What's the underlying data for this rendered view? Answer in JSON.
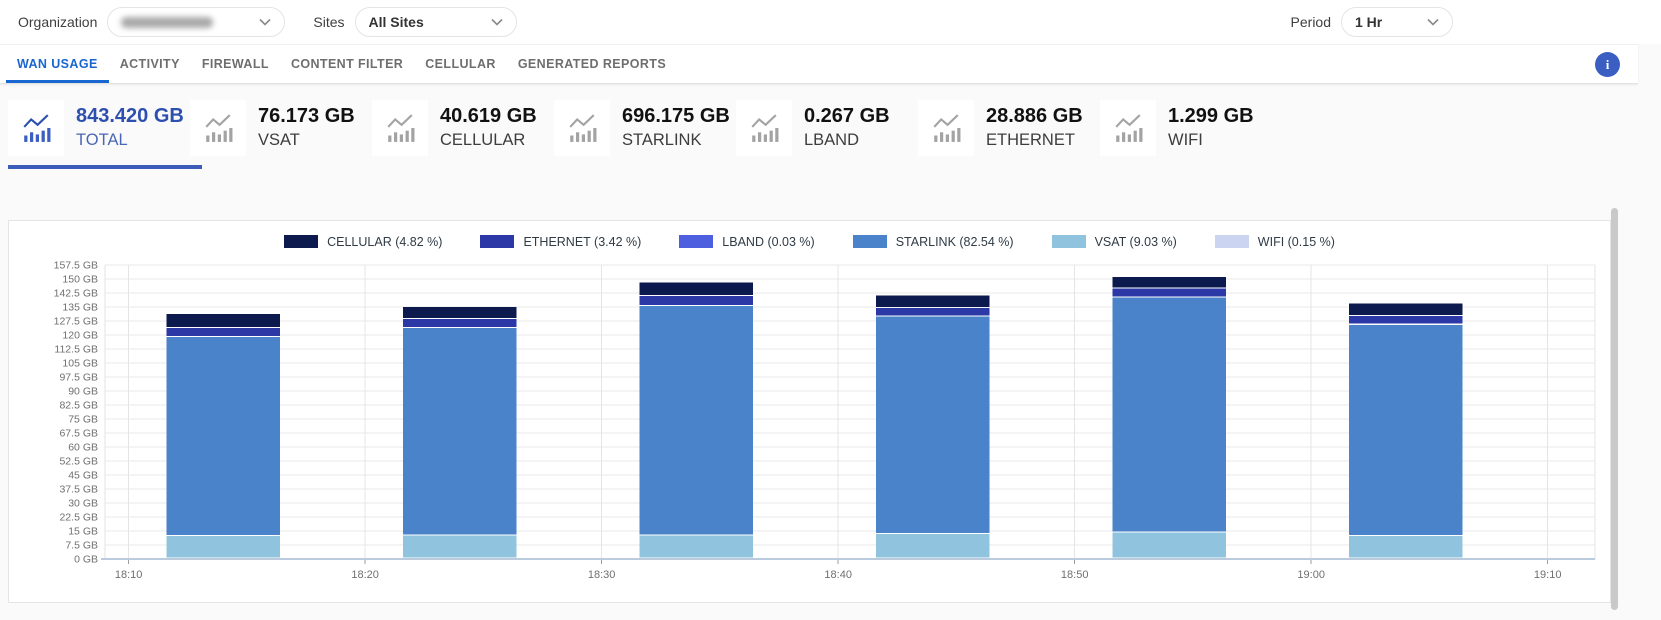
{
  "topbar": {
    "organization_label": "Organization",
    "organization_value": "",
    "sites_label": "Sites",
    "sites_value": "All Sites",
    "period_label": "Period",
    "period_value": "1 Hr"
  },
  "tabs": [
    {
      "label": "WAN USAGE",
      "active": true
    },
    {
      "label": "ACTIVITY",
      "active": false
    },
    {
      "label": "FIREWALL",
      "active": false
    },
    {
      "label": "CONTENT FILTER",
      "active": false
    },
    {
      "label": "CELLULAR",
      "active": false
    },
    {
      "label": "GENERATED REPORTS",
      "active": false
    }
  ],
  "info_button_label": "i",
  "stats": [
    {
      "value": "843.420 GB",
      "label": "TOTAL",
      "active": true
    },
    {
      "value": "76.173 GB",
      "label": "VSAT",
      "active": false
    },
    {
      "value": "40.619 GB",
      "label": "CELLULAR",
      "active": false
    },
    {
      "value": "696.175 GB",
      "label": "STARLINK",
      "active": false
    },
    {
      "value": "0.267 GB",
      "label": "LBAND",
      "active": false
    },
    {
      "value": "28.886 GB",
      "label": "ETHERNET",
      "active": false
    },
    {
      "value": "1.299 GB",
      "label": "WIFI",
      "active": false
    }
  ],
  "chart_data": {
    "type": "bar",
    "stacked": true,
    "title": "",
    "legend_position": "top",
    "grid": true,
    "y_axis": {
      "min": 0,
      "max": 157.5,
      "step": 7.5,
      "unit": "GB"
    },
    "x_ticks": [
      {
        "label": "18:10",
        "minute": 10
      },
      {
        "label": "18:20",
        "minute": 20
      },
      {
        "label": "18:30",
        "minute": 30
      },
      {
        "label": "18:40",
        "minute": 40
      },
      {
        "label": "18:50",
        "minute": 50
      },
      {
        "label": "19:00",
        "minute": 60
      },
      {
        "label": "19:10",
        "minute": 70
      }
    ],
    "x_domain_minutes": [
      9,
      72
    ],
    "bar_center_minutes": [
      14,
      24,
      34,
      44,
      54,
      64
    ],
    "bar_width_minutes": 4.8,
    "stack_order_bottom_to_top": [
      "WIFI",
      "VSAT",
      "STARLINK",
      "LBAND",
      "ETHERNET",
      "CELLULAR"
    ],
    "series": [
      {
        "name": "CELLULAR",
        "legend_pct": "4.82 %",
        "color": "#0d1a4e",
        "values": [
          7.5,
          6.4,
          7.3,
          6.5,
          6.3,
          6.62
        ]
      },
      {
        "name": "ETHERNET",
        "legend_pct": "3.42 %",
        "color": "#2b38a6",
        "values": [
          4.7,
          4.9,
          5.2,
          4.6,
          4.79,
          4.7
        ]
      },
      {
        "name": "LBAND",
        "legend_pct": "0.03 %",
        "color": "#4d5fdf",
        "values": [
          0.04,
          0.05,
          0.04,
          0.05,
          0.04,
          0.05
        ]
      },
      {
        "name": "STARLINK",
        "legend_pct": "82.54 %",
        "color": "#4a83ca",
        "values": [
          106.5,
          111.0,
          123.0,
          116.6,
          125.9,
          113.2
        ]
      },
      {
        "name": "VSAT",
        "legend_pct": "9.03 %",
        "color": "#90c4de",
        "values": [
          12.2,
          12.5,
          12.4,
          13.1,
          13.9,
          12.07
        ]
      },
      {
        "name": "WIFI",
        "legend_pct": "0.15 %",
        "color": "#cbd5f1",
        "values": [
          0.21,
          0.22,
          0.21,
          0.22,
          0.22,
          0.22
        ]
      }
    ]
  }
}
